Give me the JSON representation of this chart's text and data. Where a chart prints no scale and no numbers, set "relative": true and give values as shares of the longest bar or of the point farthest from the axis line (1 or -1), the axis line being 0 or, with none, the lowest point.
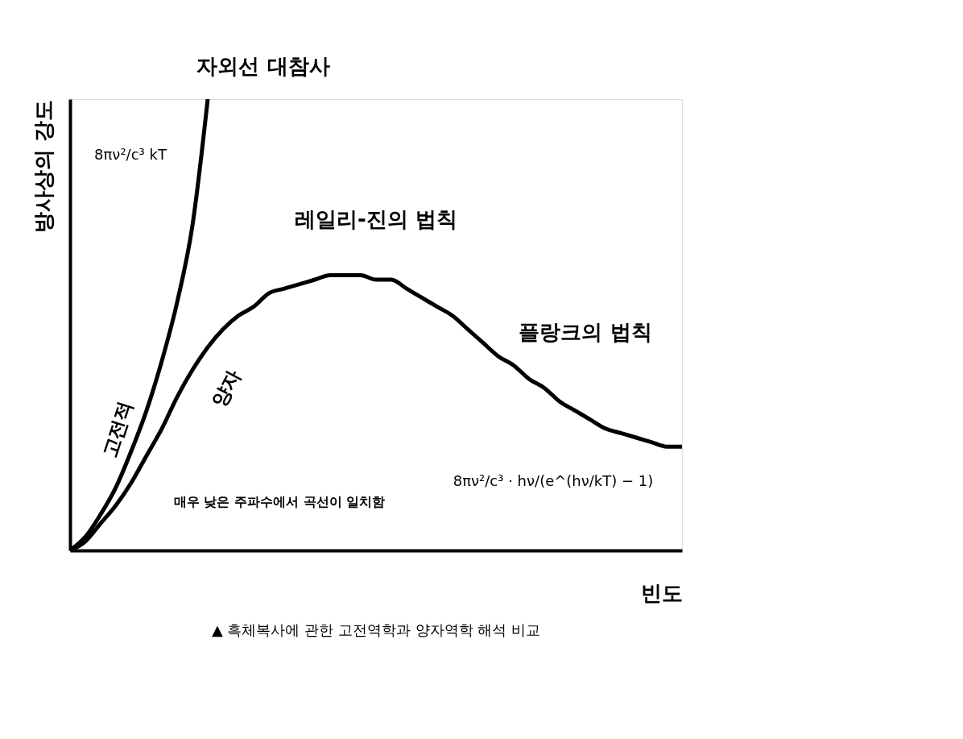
{
  "chart_data": {
    "type": "line",
    "relative": true,
    "xlabel": "빈도",
    "ylabel": "방사상의 강도",
    "grid": false,
    "legend": false,
    "marker": "none",
    "line_style": "solid",
    "categories": [
      null,
      null,
      null,
      null,
      null,
      null,
      null,
      null,
      null,
      null,
      null,
      null,
      null,
      null,
      null,
      null,
      null,
      null,
      null,
      null,
      null,
      null,
      null,
      null,
      null,
      null,
      null,
      null,
      null,
      null,
      null,
      null,
      null,
      null,
      null,
      null,
      null,
      null,
      null,
      null,
      null
    ],
    "series": [
      {
        "name": "고전적",
        "color": "#000000",
        "values": [
          0,
          0.03,
          0.08,
          0.14,
          0.22,
          0.31,
          0.42,
          0.55,
          0.72,
          1.0,
          null,
          null,
          null,
          null,
          null,
          null,
          null,
          null,
          null,
          null,
          null,
          null,
          null,
          null,
          null,
          null,
          null,
          null,
          null,
          null,
          null,
          null,
          null,
          null,
          null,
          null,
          null,
          null,
          null,
          null,
          null
        ]
      },
      {
        "name": "양자",
        "color": "#000000",
        "values": [
          0,
          0.02,
          0.06,
          0.1,
          0.15,
          0.21,
          0.27,
          0.34,
          0.4,
          0.45,
          0.49,
          0.52,
          0.54,
          0.57,
          0.58,
          0.59,
          0.6,
          0.61,
          0.61,
          0.61,
          0.6,
          0.6,
          0.58,
          0.56,
          0.54,
          0.52,
          0.49,
          0.46,
          0.43,
          0.41,
          0.38,
          0.36,
          0.33,
          0.31,
          0.29,
          0.27,
          0.26,
          0.25,
          0.24,
          0.23,
          0.23
        ]
      }
    ],
    "annotations": [
      "자외선 대참사",
      "8πν²/c³ kT",
      "레일리-진의 법칙",
      "플랑크의 법칙",
      "8πν²/c³ · hν/(e^(hν/kT) − 1)",
      "매우 낮은 주파수에서 곡선이 일치함",
      "▲ 흑체복사에 관한 고전역학과 양자역학 해석 비교"
    ]
  }
}
